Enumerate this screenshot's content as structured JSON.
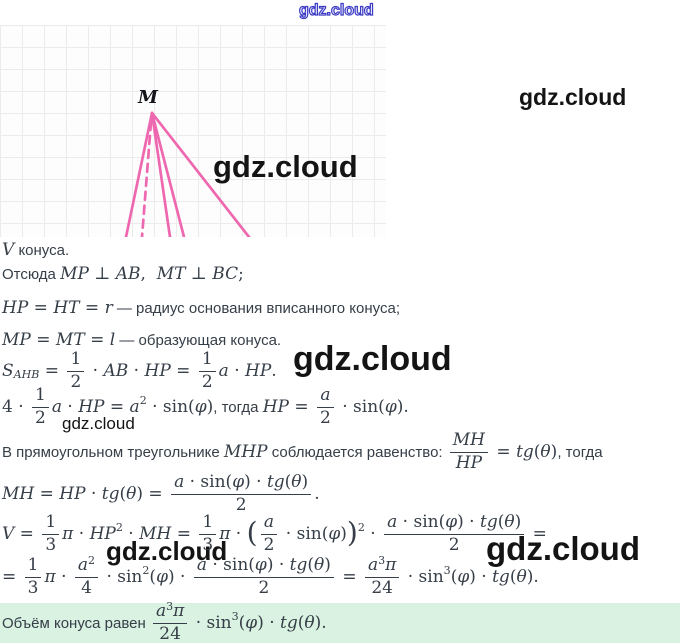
{
  "watermark": {
    "text": "gdz.cloud"
  },
  "figure": {
    "apex_label": "M"
  },
  "colors": {
    "accent_pink": "#ee68b0",
    "highlight_green": "#d9f2e2",
    "watermark_blue": "#3d3dc4",
    "text": "#363e48"
  },
  "solution": {
    "lines": [
      {
        "tokens": [
          {
            "t": "i",
            "v": "V"
          },
          {
            "t": "r",
            "v": " конуса."
          }
        ]
      },
      {
        "tokens": [
          {
            "t": "r",
            "v": "Отсюда "
          },
          {
            "t": "i",
            "v": "MP"
          },
          {
            "t": "n",
            "v": " ⊥ "
          },
          {
            "t": "i",
            "v": "AB"
          },
          {
            "t": "n",
            "v": ",  "
          },
          {
            "t": "i",
            "v": "MT"
          },
          {
            "t": "n",
            "v": " ⊥ "
          },
          {
            "t": "i",
            "v": "BC"
          },
          {
            "t": "n",
            "v": ";"
          }
        ]
      },
      {
        "tokens": [
          {
            "t": "i",
            "v": "HP"
          },
          {
            "t": "n",
            "v": " = "
          },
          {
            "t": "i",
            "v": "HT"
          },
          {
            "t": "n",
            "v": " = "
          },
          {
            "t": "i",
            "v": "r"
          },
          {
            "t": "r",
            "v": " — радиус основания вписанного конуса;"
          }
        ]
      },
      {
        "tokens": [
          {
            "t": "i",
            "v": "MP"
          },
          {
            "t": "n",
            "v": " = "
          },
          {
            "t": "i",
            "v": "MT"
          },
          {
            "t": "n",
            "v": " = "
          },
          {
            "t": "i",
            "v": "l"
          },
          {
            "t": "r",
            "v": " — образующая конуса."
          }
        ]
      },
      {
        "tokens": [
          {
            "t": "i",
            "v": "S"
          },
          {
            "t": "b",
            "v": "AHB"
          },
          {
            "t": "n",
            "v": " = "
          },
          {
            "t": "f",
            "num": [
              {
                "t": "n",
                "v": "1"
              }
            ],
            "den": [
              {
                "t": "n",
                "v": "2"
              }
            ]
          },
          {
            "t": "n",
            "v": " · "
          },
          {
            "t": "i",
            "v": "AB"
          },
          {
            "t": "n",
            "v": " · "
          },
          {
            "t": "i",
            "v": "HP"
          },
          {
            "t": "n",
            "v": " = "
          },
          {
            "t": "f",
            "num": [
              {
                "t": "n",
                "v": "1"
              }
            ],
            "den": [
              {
                "t": "n",
                "v": "2"
              }
            ]
          },
          {
            "t": "i",
            "v": "a"
          },
          {
            "t": "n",
            "v": " · "
          },
          {
            "t": "i",
            "v": "HP"
          },
          {
            "t": "n",
            "v": "."
          }
        ]
      },
      {
        "tokens": [
          {
            "t": "n",
            "v": "4 · "
          },
          {
            "t": "f",
            "num": [
              {
                "t": "n",
                "v": "1"
              }
            ],
            "den": [
              {
                "t": "n",
                "v": "2"
              }
            ]
          },
          {
            "t": "i",
            "v": "a"
          },
          {
            "t": "n",
            "v": " · "
          },
          {
            "t": "i",
            "v": "HP"
          },
          {
            "t": "n",
            "v": " = "
          },
          {
            "t": "i",
            "v": "a"
          },
          {
            "t": "s",
            "v": "2"
          },
          {
            "t": "n",
            "v": " · sin("
          },
          {
            "t": "i",
            "v": "φ"
          },
          {
            "t": "n",
            "v": ")"
          },
          {
            "t": "r",
            "v": ", тогда "
          },
          {
            "t": "i",
            "v": "HP"
          },
          {
            "t": "n",
            "v": " = "
          },
          {
            "t": "f",
            "num": [
              {
                "t": "i",
                "v": "a"
              }
            ],
            "den": [
              {
                "t": "n",
                "v": "2"
              }
            ]
          },
          {
            "t": "n",
            "v": " · sin("
          },
          {
            "t": "i",
            "v": "φ"
          },
          {
            "t": "n",
            "v": ")."
          }
        ]
      },
      {
        "tokens": [
          {
            "t": "r",
            "v": "В прямоугольном треугольнике "
          },
          {
            "t": "i",
            "v": "MHP"
          },
          {
            "t": "r",
            "v": " соблюдается равенство: "
          },
          {
            "t": "f",
            "num": [
              {
                "t": "i",
                "v": "MH"
              }
            ],
            "den": [
              {
                "t": "i",
                "v": "HP"
              }
            ]
          },
          {
            "t": "n",
            "v": " = "
          },
          {
            "t": "i",
            "v": "tg"
          },
          {
            "t": "n",
            "v": "("
          },
          {
            "t": "i",
            "v": "θ"
          },
          {
            "t": "n",
            "v": ")"
          },
          {
            "t": "r",
            "v": ", тогда"
          }
        ]
      },
      {
        "tokens": [
          {
            "t": "i",
            "v": "MH"
          },
          {
            "t": "n",
            "v": " = "
          },
          {
            "t": "i",
            "v": "HP"
          },
          {
            "t": "n",
            "v": " · "
          },
          {
            "t": "i",
            "v": "tg"
          },
          {
            "t": "n",
            "v": "("
          },
          {
            "t": "i",
            "v": "θ"
          },
          {
            "t": "n",
            "v": ") = "
          },
          {
            "t": "f",
            "num": [
              {
                "t": "i",
                "v": "a"
              },
              {
                "t": "n",
                "v": " · sin("
              },
              {
                "t": "i",
                "v": "φ"
              },
              {
                "t": "n",
                "v": ") · "
              },
              {
                "t": "i",
                "v": "tg"
              },
              {
                "t": "n",
                "v": "("
              },
              {
                "t": "i",
                "v": "θ"
              },
              {
                "t": "n",
                "v": ")"
              }
            ],
            "den": [
              {
                "t": "n",
                "v": "2"
              }
            ]
          },
          {
            "t": "n",
            "v": "."
          }
        ]
      },
      {
        "tokens": [
          {
            "t": "i",
            "v": "V"
          },
          {
            "t": "n",
            "v": " = "
          },
          {
            "t": "f",
            "num": [
              {
                "t": "n",
                "v": "1"
              }
            ],
            "den": [
              {
                "t": "n",
                "v": "3"
              }
            ]
          },
          {
            "t": "i",
            "v": "π"
          },
          {
            "t": "n",
            "v": " · "
          },
          {
            "t": "i",
            "v": "HP"
          },
          {
            "t": "s",
            "v": "2"
          },
          {
            "t": "n",
            "v": " · "
          },
          {
            "t": "i",
            "v": "MH"
          },
          {
            "t": "n",
            "v": " = "
          },
          {
            "t": "f",
            "num": [
              {
                "t": "n",
                "v": "1"
              }
            ],
            "den": [
              {
                "t": "n",
                "v": "3"
              }
            ]
          },
          {
            "t": "i",
            "v": "π"
          },
          {
            "t": "n",
            "v": " · "
          },
          {
            "t": "p",
            "v": "("
          },
          {
            "t": "f",
            "num": [
              {
                "t": "i",
                "v": "a"
              }
            ],
            "den": [
              {
                "t": "n",
                "v": "2"
              }
            ]
          },
          {
            "t": "n",
            "v": " · sin("
          },
          {
            "t": "i",
            "v": "φ"
          },
          {
            "t": "n",
            "v": ")"
          },
          {
            "t": "p",
            "v": ")"
          },
          {
            "t": "s",
            "v": "2"
          },
          {
            "t": "n",
            "v": " · "
          },
          {
            "t": "f",
            "num": [
              {
                "t": "i",
                "v": "a"
              },
              {
                "t": "n",
                "v": " · sin("
              },
              {
                "t": "i",
                "v": "φ"
              },
              {
                "t": "n",
                "v": ") · "
              },
              {
                "t": "i",
                "v": "tg"
              },
              {
                "t": "n",
                "v": "("
              },
              {
                "t": "i",
                "v": "θ"
              },
              {
                "t": "n",
                "v": ")"
              }
            ],
            "den": [
              {
                "t": "n",
                "v": "2"
              }
            ]
          },
          {
            "t": "n",
            "v": " ="
          }
        ]
      },
      {
        "tokens": [
          {
            "t": "n",
            "v": "= "
          },
          {
            "t": "f",
            "num": [
              {
                "t": "n",
                "v": "1"
              }
            ],
            "den": [
              {
                "t": "n",
                "v": "3"
              }
            ]
          },
          {
            "t": "i",
            "v": "π"
          },
          {
            "t": "n",
            "v": " · "
          },
          {
            "t": "f",
            "num": [
              {
                "t": "i",
                "v": "a"
              },
              {
                "t": "s",
                "v": "2"
              }
            ],
            "den": [
              {
                "t": "n",
                "v": "4"
              }
            ]
          },
          {
            "t": "n",
            "v": " · sin"
          },
          {
            "t": "s",
            "v": "2"
          },
          {
            "t": "n",
            "v": "("
          },
          {
            "t": "i",
            "v": "φ"
          },
          {
            "t": "n",
            "v": ") · "
          },
          {
            "t": "f",
            "num": [
              {
                "t": "i",
                "v": "a"
              },
              {
                "t": "n",
                "v": " · sin("
              },
              {
                "t": "i",
                "v": "φ"
              },
              {
                "t": "n",
                "v": ") · "
              },
              {
                "t": "i",
                "v": "tg"
              },
              {
                "t": "n",
                "v": "("
              },
              {
                "t": "i",
                "v": "θ"
              },
              {
                "t": "n",
                "v": ")"
              }
            ],
            "den": [
              {
                "t": "n",
                "v": "2"
              }
            ]
          },
          {
            "t": "n",
            "v": " = "
          },
          {
            "t": "f",
            "num": [
              {
                "t": "i",
                "v": "a"
              },
              {
                "t": "s",
                "v": "3"
              },
              {
                "t": "i",
                "v": "π"
              }
            ],
            "den": [
              {
                "t": "n",
                "v": "24"
              }
            ]
          },
          {
            "t": "n",
            "v": " · sin"
          },
          {
            "t": "s",
            "v": "3"
          },
          {
            "t": "n",
            "v": "("
          },
          {
            "t": "i",
            "v": "φ"
          },
          {
            "t": "n",
            "v": ") · "
          },
          {
            "t": "i",
            "v": "tg"
          },
          {
            "t": "n",
            "v": "("
          },
          {
            "t": "i",
            "v": "θ"
          },
          {
            "t": "n",
            "v": ")."
          }
        ]
      }
    ],
    "conclusion": {
      "tokens": [
        {
          "t": "r",
          "v": "Объём конуса равен "
        },
        {
          "t": "f",
          "num": [
            {
              "t": "i",
              "v": "a"
            },
            {
              "t": "s",
              "v": "3"
            },
            {
              "t": "i",
              "v": "π"
            }
          ],
          "den": [
            {
              "t": "n",
              "v": "24"
            }
          ]
        },
        {
          "t": "n",
          "v": " · sin"
        },
        {
          "t": "s",
          "v": "3"
        },
        {
          "t": "n",
          "v": "("
        },
        {
          "t": "i",
          "v": "φ"
        },
        {
          "t": "n",
          "v": ") · "
        },
        {
          "t": "i",
          "v": "tg"
        },
        {
          "t": "n",
          "v": "("
        },
        {
          "t": "i",
          "v": "θ"
        },
        {
          "t": "n",
          "v": ")."
        }
      ]
    }
  }
}
